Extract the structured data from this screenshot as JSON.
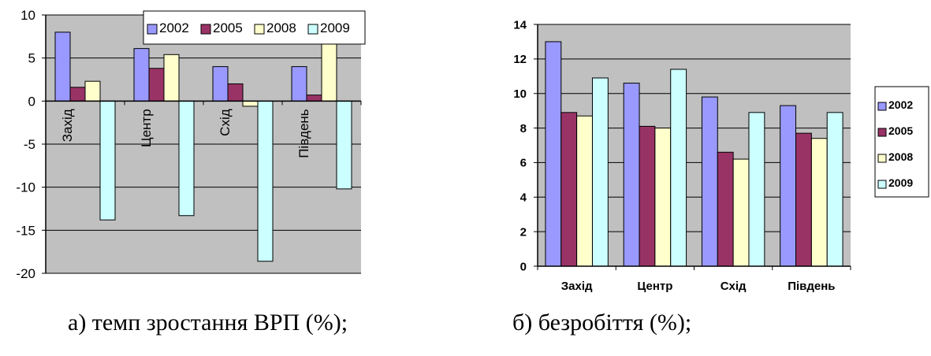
{
  "captions": {
    "left": "а) темп зростання ВРП (%);",
    "right": "б) безробіття (%);"
  },
  "chart_data": [
    {
      "type": "bar",
      "categories": [
        "Захід",
        "Центр",
        "Схід",
        "Південь"
      ],
      "series": [
        {
          "name": "2002",
          "color": "#9999ff",
          "values": [
            8.0,
            6.1,
            4.0,
            4.0
          ]
        },
        {
          "name": "2005",
          "color": "#993366",
          "values": [
            1.6,
            3.8,
            2.0,
            0.7
          ]
        },
        {
          "name": "2008",
          "color": "#ffffcc",
          "values": [
            2.3,
            5.4,
            -0.6,
            7.8
          ]
        },
        {
          "name": "2009",
          "color": "#ccffff",
          "values": [
            -13.8,
            -13.3,
            -18.6,
            -10.2
          ]
        }
      ],
      "ylim": [
        -20,
        10
      ],
      "yticks": [
        "10",
        "5",
        "0",
        "-5",
        "-10",
        "-15",
        "-20"
      ],
      "plot_background": "#c0c0c0",
      "grid": "horizontal",
      "legend": "top"
    },
    {
      "type": "bar",
      "categories": [
        "Захід",
        "Центр",
        "Схід",
        "Південь"
      ],
      "series": [
        {
          "name": "2002",
          "color": "#9999ff",
          "values": [
            13.0,
            10.6,
            9.8,
            9.3
          ]
        },
        {
          "name": "2005",
          "color": "#993366",
          "values": [
            8.9,
            8.1,
            6.6,
            7.7
          ]
        },
        {
          "name": "2008",
          "color": "#ffffcc",
          "values": [
            8.7,
            8.0,
            6.2,
            7.4
          ]
        },
        {
          "name": "2009",
          "color": "#ccffff",
          "values": [
            10.9,
            11.4,
            8.9,
            8.9
          ]
        }
      ],
      "ylim": [
        0,
        14
      ],
      "yticks": [
        "14",
        "12",
        "10",
        "8",
        "6",
        "4",
        "2",
        "0"
      ],
      "plot_background": "#c0c0c0",
      "grid": "horizontal",
      "legend": "right"
    }
  ]
}
